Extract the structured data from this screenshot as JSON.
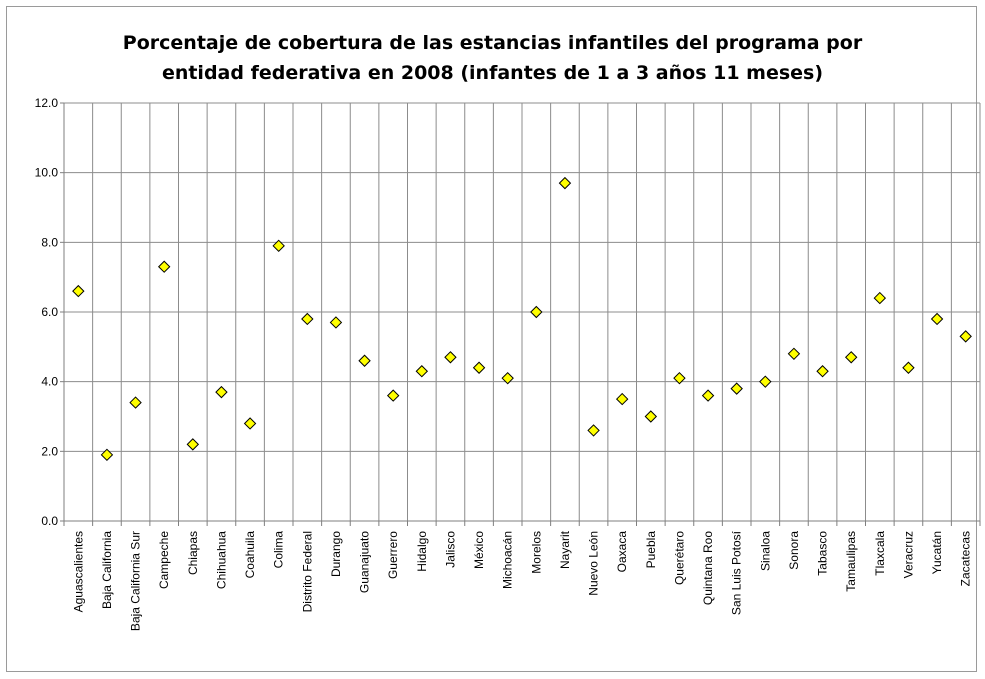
{
  "chart_data": {
    "type": "scatter",
    "title_lines": [
      "Porcentaje de cobertura de las estancias infantiles del programa por",
      "entidad federativa en 2008 (infantes de 1 a 3 años 11 meses)"
    ],
    "xlabel": "",
    "ylabel": "",
    "ylim": [
      0,
      12
    ],
    "yticks": [
      "0.0",
      "2.0",
      "4.0",
      "6.0",
      "8.0",
      "10.0",
      "12.0"
    ],
    "grid": true,
    "legend": "none",
    "marker": {
      "shape": "diamond",
      "fill": "#ffff00",
      "stroke": "#000000"
    },
    "categories": [
      "Aguascalientes",
      "Baja California",
      "Baja California Sur",
      "Campeche",
      "Chiapas",
      "Chihuahua",
      "Coahuila",
      "Colima",
      "Distrito Federal",
      "Durango",
      "Guanajuato",
      "Guerrero",
      "Hidalgo",
      "Jalisco",
      "México",
      "Michoacán",
      "Morelos",
      "Nayarit",
      "Nuevo León",
      "Oaxaca",
      "Puebla",
      "Querétaro",
      "Quintana Roo",
      "San Luis Potosí",
      "Sinaloa",
      "Sonora",
      "Tabasco",
      "Tamaulipas",
      "Tlaxcala",
      "Veracruz",
      "Yucatán",
      "Zacatecas"
    ],
    "values": [
      6.6,
      1.9,
      3.4,
      7.3,
      2.2,
      3.7,
      2.8,
      7.9,
      5.8,
      5.7,
      4.6,
      3.6,
      4.3,
      4.7,
      4.4,
      4.1,
      6.0,
      9.7,
      2.6,
      3.5,
      3.0,
      4.1,
      3.6,
      3.8,
      4.0,
      4.8,
      4.3,
      4.7,
      6.4,
      4.4,
      5.8,
      5.3
    ]
  }
}
